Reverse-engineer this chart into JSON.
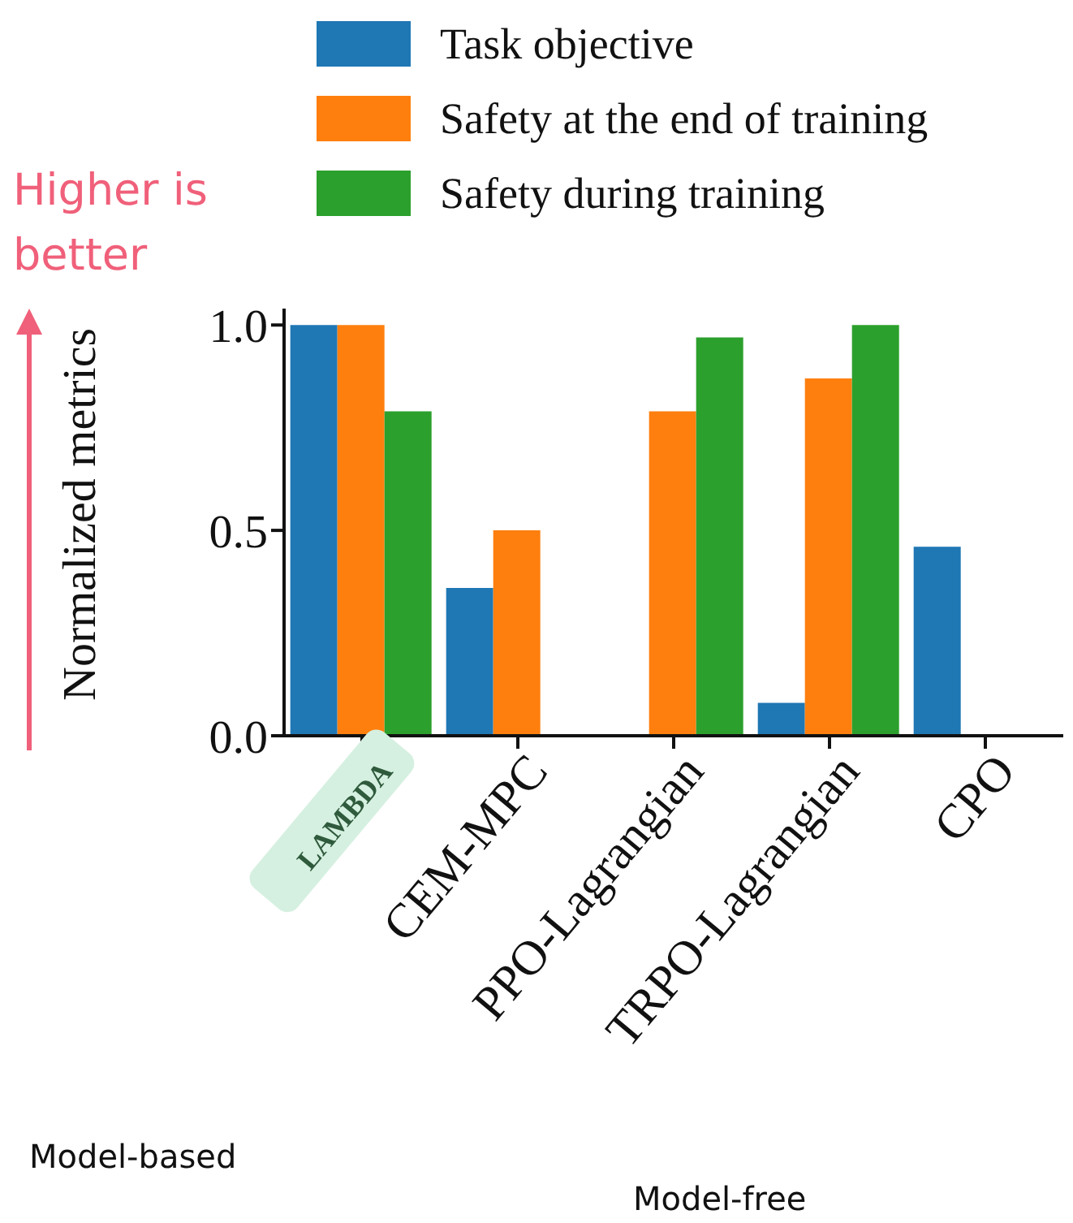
{
  "chart_data": {
    "type": "bar",
    "categories": [
      "LAMBDA",
      "CEM-MPC",
      "PPO-Lagrangian",
      "TRPO-Lagrangian",
      "CPO"
    ],
    "series": [
      {
        "name": "Task objective",
        "color": "#1f77b4",
        "values": [
          1.0,
          0.36,
          0.0,
          0.08,
          0.46
        ]
      },
      {
        "name": "Safety at the end of training",
        "color": "#ff7f0e",
        "values": [
          1.0,
          0.5,
          0.79,
          0.87,
          null
        ]
      },
      {
        "name": "Safety during training",
        "color": "#2ca02c",
        "values": [
          0.79,
          0.0,
          0.97,
          1.0,
          null
        ]
      }
    ],
    "ylabel": "Normalized metrics",
    "ylim": [
      0,
      1.04
    ],
    "yticks": [
      {
        "value": 0,
        "label": "0.0"
      },
      {
        "value": 0.5,
        "label": "0.5"
      },
      {
        "value": 1,
        "label": "1.0"
      }
    ],
    "grid": false,
    "legend": "top",
    "annotations": [
      "Higher is better",
      "Model-based",
      "Model-free"
    ]
  }
}
